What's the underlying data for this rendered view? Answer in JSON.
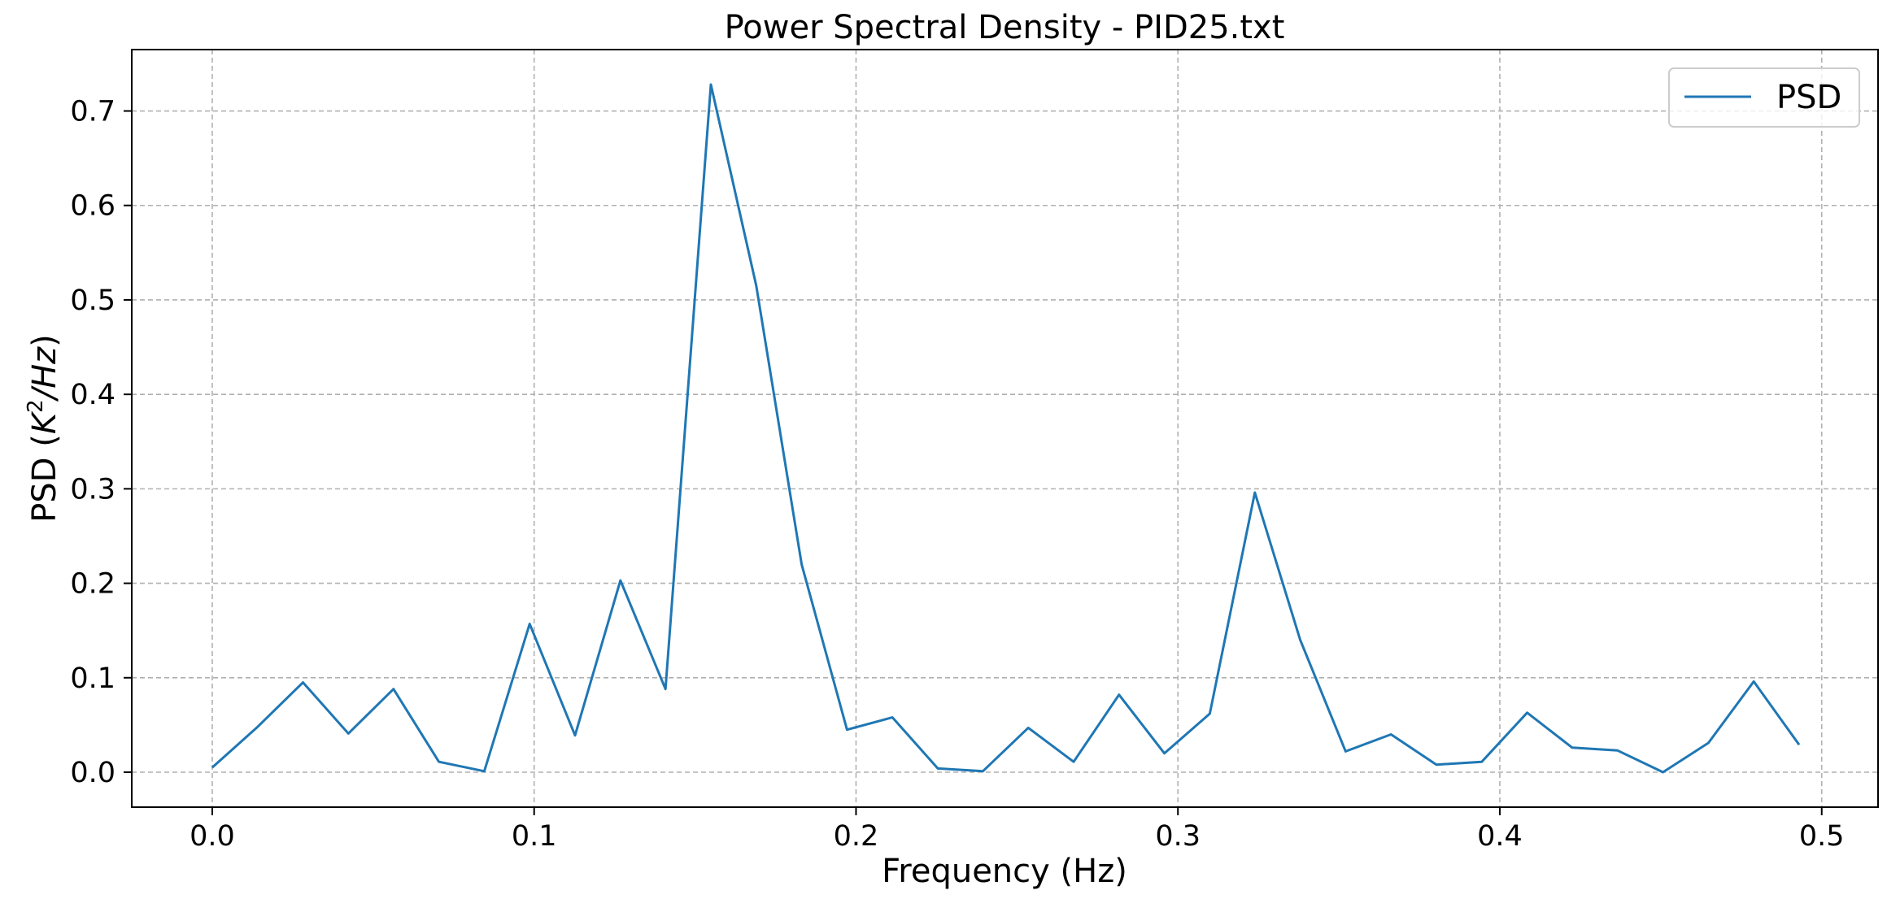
{
  "chart_data": {
    "type": "line",
    "title": "Power Spectral Density - PID25.txt",
    "xlabel": "Frequency (Hz)",
    "ylabel_prefix": "PSD (",
    "ylabel_math": "K",
    "ylabel_sup": "2",
    "ylabel_math2": "/Hz",
    "ylabel_suffix": ")",
    "xlim": [
      -0.025,
      0.5175
    ],
    "ylim": [
      -0.037,
      0.765
    ],
    "xticks": [
      0.0,
      0.1,
      0.2,
      0.3,
      0.4,
      0.5
    ],
    "xtick_labels": [
      "0.0",
      "0.1",
      "0.2",
      "0.3",
      "0.4",
      "0.5"
    ],
    "yticks": [
      0.0,
      0.1,
      0.2,
      0.3,
      0.4,
      0.5,
      0.6,
      0.7
    ],
    "ytick_labels": [
      "0.0",
      "0.1",
      "0.2",
      "0.3",
      "0.4",
      "0.5",
      "0.6",
      "0.7"
    ],
    "grid": true,
    "legend_position": "top-right",
    "series": [
      {
        "name": "PSD",
        "color": "#1f77b4",
        "x": [
          0.0,
          0.0141,
          0.0282,
          0.0423,
          0.0563,
          0.0704,
          0.0845,
          0.0986,
          0.1127,
          0.1268,
          0.1408,
          0.1549,
          0.169,
          0.1831,
          0.1972,
          0.2113,
          0.2254,
          0.2394,
          0.2535,
          0.2676,
          0.2817,
          0.2958,
          0.3099,
          0.3239,
          0.338,
          0.3521,
          0.3662,
          0.3803,
          0.3944,
          0.4085,
          0.4225,
          0.4366,
          0.4507,
          0.4648,
          0.4789,
          0.493
        ],
        "y": [
          0.005,
          0.048,
          0.095,
          0.041,
          0.088,
          0.011,
          0.001,
          0.157,
          0.039,
          0.203,
          0.088,
          0.728,
          0.515,
          0.22,
          0.045,
          0.058,
          0.004,
          0.001,
          0.047,
          0.011,
          0.082,
          0.02,
          0.062,
          0.296,
          0.14,
          0.022,
          0.04,
          0.008,
          0.011,
          0.063,
          0.026,
          0.023,
          0.0,
          0.031,
          0.096,
          0.029
        ]
      }
    ]
  }
}
